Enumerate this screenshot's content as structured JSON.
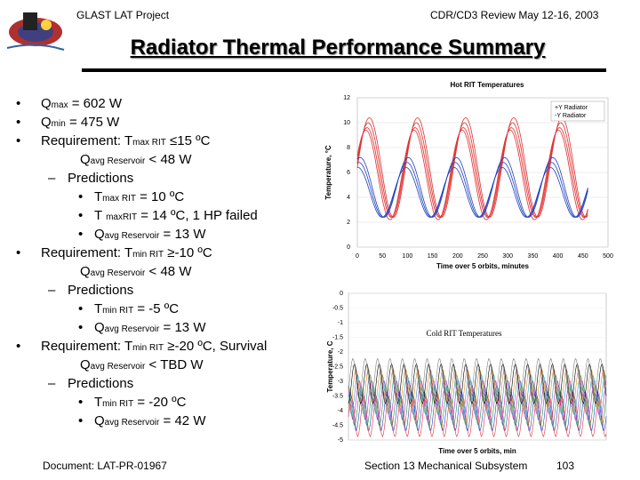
{
  "header": {
    "project": "GLAST LAT Project",
    "review": "CDR/CD3 Review May 12-16, 2003"
  },
  "slide": {
    "title": "Radiator Thermal Performance Summary"
  },
  "bullets": [
    {
      "level": 0,
      "marker": "•",
      "text": "Q",
      "sub": "max",
      "rest": " = 602 W"
    },
    {
      "level": 0,
      "marker": "•",
      "text": "Q",
      "sub": "min",
      "rest": " = 475 W"
    },
    {
      "level": 0,
      "marker": "•",
      "text": "Requirement:  T",
      "sub": "max RIT",
      "rest": " ≤15 ºC"
    },
    {
      "level": 2,
      "marker": "",
      "text": "Q",
      "sub": "avg Reservoir",
      "rest": " < 48 W"
    },
    {
      "level": 1,
      "marker": "–",
      "text": "Predictions",
      "sub": "",
      "rest": ""
    },
    {
      "level": 2,
      "marker": "•",
      "text": "T",
      "sub": "max RIT",
      "rest": " = 10 ºC"
    },
    {
      "level": 2,
      "marker": "•",
      "text": "T ",
      "sub": "maxRIT",
      "rest": " = 14 ºC, 1 HP failed"
    },
    {
      "level": 2,
      "marker": "•",
      "text": "Q",
      "sub": "avg Reservoir",
      "rest": " = 13 W"
    },
    {
      "level": 0,
      "marker": "•",
      "text": "Requirement:  T",
      "sub": "min RIT",
      "rest": " ≥-10 ºC"
    },
    {
      "level": 2,
      "marker": "",
      "text": "Q",
      "sub": "avg Reservoir",
      "rest": " < 48 W"
    },
    {
      "level": 1,
      "marker": "–",
      "text": "Predictions",
      "sub": "",
      "rest": ""
    },
    {
      "level": 2,
      "marker": "•",
      "text": "T",
      "sub": "min RIT",
      "rest": " = -5 ºC"
    },
    {
      "level": 2,
      "marker": "•",
      "text": "Q",
      "sub": "avg Reservoir",
      "rest": " = 13 W"
    },
    {
      "level": 0,
      "marker": "•",
      "text": "Requirement:  T",
      "sub": "min RIT",
      "rest": " ≥-20 ºC, Survival"
    },
    {
      "level": 2,
      "marker": "",
      "text": "Q",
      "sub": "avg Reservoir",
      "rest": " < TBD W"
    },
    {
      "level": 1,
      "marker": "–",
      "text": "Predictions",
      "sub": "",
      "rest": ""
    },
    {
      "level": 2,
      "marker": "•",
      "text": "T",
      "sub": "min RIT",
      "rest": " = -20 ºC"
    },
    {
      "level": 2,
      "marker": "•",
      "text": "Q",
      "sub": "avg Reservoir",
      "rest": " = 42 W"
    }
  ],
  "footer": {
    "document": "Document:  LAT-PR-01967",
    "section": "Section 13   Mechanical Subsystem",
    "page": "103"
  },
  "chart_data": [
    {
      "type": "line",
      "title": "Hot RIT Temperatures",
      "xlabel": "Time over 5 orbits, minutes",
      "ylabel": "Temperature, °C",
      "xlim": [
        0,
        500
      ],
      "ylim": [
        0,
        12
      ],
      "xticks": [
        0,
        50,
        100,
        150,
        200,
        250,
        300,
        350,
        400,
        450,
        500
      ],
      "yticks": [
        0,
        2,
        4,
        6,
        8,
        10,
        12
      ],
      "legend": [
        "+Y Radiator",
        "-Y Radiator"
      ],
      "colors": {
        "+Y Radiator": "#e03030",
        "-Y Radiator": "#2040c0"
      },
      "series": [
        {
          "name": "+Y Radiator",
          "period": 96,
          "curves": [
            {
              "mean": 6.4,
              "amp": 4.0,
              "phase": 0.0
            },
            {
              "mean": 6.2,
              "amp": 3.8,
              "phase": 0.15
            },
            {
              "mean": 6.0,
              "amp": 3.6,
              "phase": 0.3
            },
            {
              "mean": 5.8,
              "amp": 3.6,
              "phase": 0.45
            }
          ]
        },
        {
          "name": "-Y Radiator",
          "period": 96,
          "curves": [
            {
              "mean": 4.8,
              "amp": 2.4,
              "phase": 1.2
            },
            {
              "mean": 4.6,
              "amp": 2.2,
              "phase": 1.35
            },
            {
              "mean": 4.4,
              "amp": 2.0,
              "phase": 1.5
            }
          ]
        }
      ]
    },
    {
      "type": "line",
      "title": "Cold RIT Temperatures",
      "xlabel": "Time over 5 orbits, min",
      "ylabel": "Temperature, C",
      "xlim": [
        0,
        500
      ],
      "ylim": [
        -5,
        0
      ],
      "yticklabels": [
        "0",
        "-0.5",
        "-1",
        "-1.5",
        "-2",
        "-2.5",
        "-3",
        "-3.5",
        "-4",
        "-4.5",
        "-5"
      ],
      "series_band": {
        "min": -4.3,
        "max": -2.8,
        "count": 8,
        "period": 24
      },
      "colors": [
        "#e03030",
        "#2040c0",
        "#209040",
        "#c020c0",
        "#20a0c0",
        "#e08020",
        "#000000",
        "#808080"
      ]
    }
  ]
}
